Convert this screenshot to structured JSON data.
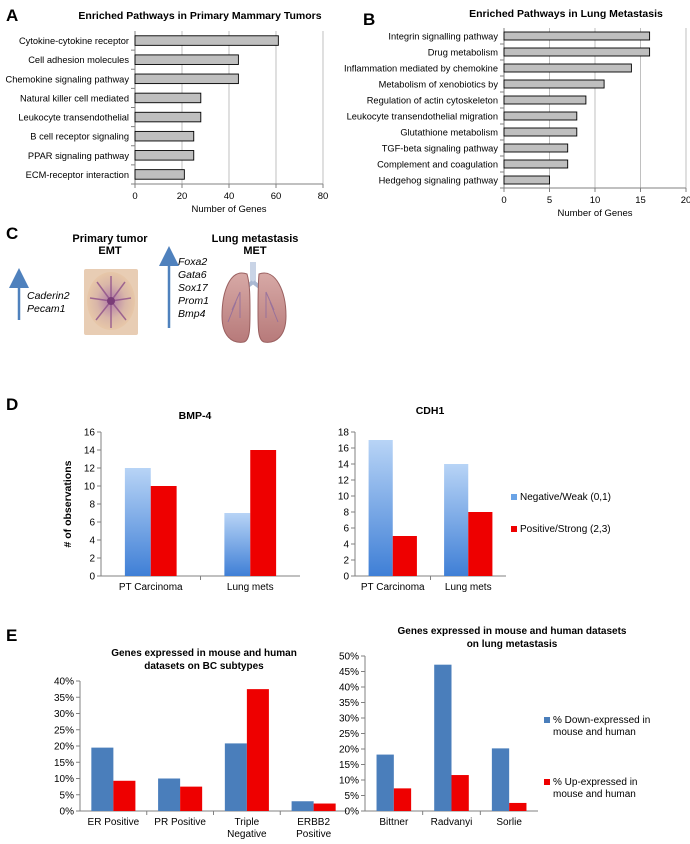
{
  "panels": {
    "A": "A",
    "B": "B",
    "C": "C",
    "D": "D",
    "E": "E"
  },
  "chart_data": [
    {
      "id": "A",
      "type": "bar",
      "orientation": "horizontal",
      "title": "Enriched Pathways in Primary Mammary Tumors",
      "xlabel": "Number of Genes",
      "ylabel": "",
      "xlim": [
        0,
        80
      ],
      "ticks": [
        0,
        20,
        40,
        60,
        80
      ],
      "categories": [
        "Cytokine-cytokine receptor",
        "Cell adhesion molecules",
        "Chemokine signaling pathway",
        "Natural killer cell mediated",
        "Leukocyte transendothelial",
        "B cell receptor signaling",
        "PPAR signaling pathway",
        "ECM-receptor interaction"
      ],
      "values": [
        61,
        44,
        44,
        28,
        28,
        25,
        25,
        21
      ],
      "grid": true,
      "color": "#bfbfbf"
    },
    {
      "id": "B",
      "type": "bar",
      "orientation": "horizontal",
      "title": "Enriched Pathways in Lung Metastasis",
      "xlabel": "Number of Genes",
      "ylabel": "",
      "xlim": [
        0,
        20
      ],
      "ticks": [
        0,
        5,
        10,
        15,
        20
      ],
      "categories": [
        "Integrin signalling pathway",
        "Drug metabolism",
        "Inflammation mediated by chemokine",
        "Metabolism of xenobiotics by",
        "Regulation of actin cytoskeleton",
        "Leukocyte transendothelial migration",
        "Glutathione metabolism",
        "TGF-beta signaling pathway",
        "Complement and coagulation",
        "Hedgehog signaling pathway"
      ],
      "values": [
        16,
        16,
        14,
        11,
        9,
        8,
        8,
        7,
        7,
        5
      ],
      "grid": true,
      "color": "#bfbfbf"
    },
    {
      "id": "D1",
      "type": "bar",
      "title": "BMP-4",
      "xlabel": "",
      "ylabel": "# of observations",
      "ylim": [
        0,
        16
      ],
      "ticks": [
        0,
        2,
        4,
        6,
        8,
        10,
        12,
        14,
        16
      ],
      "categories": [
        "PT Carcinoma",
        "Lung mets"
      ],
      "series": [
        {
          "values": [
            12,
            7
          ],
          "color": "#6aa3e6"
        },
        {
          "values": [
            10,
            14
          ],
          "color": "#ee0000"
        }
      ]
    },
    {
      "id": "D2",
      "type": "bar",
      "title": "CDH1",
      "xlabel": "",
      "ylabel": "",
      "ylim": [
        0,
        18
      ],
      "ticks": [
        0,
        2,
        4,
        6,
        8,
        10,
        12,
        14,
        16,
        18
      ],
      "categories": [
        "PT Carcinoma",
        "Lung mets"
      ],
      "series": [
        {
          "name": "Negative/Weak (0,1)",
          "values": [
            17,
            14
          ],
          "color": "#6aa3e6"
        },
        {
          "name": "Positive/Strong (2,3)",
          "values": [
            5,
            8
          ],
          "color": "#ee0000"
        }
      ],
      "legend": "right"
    },
    {
      "id": "E1",
      "type": "bar",
      "title": "Genes expressed in mouse and human datasets on BC subtypes",
      "xlabel": "",
      "ylabel": "",
      "ylim": [
        0,
        40
      ],
      "ticks": [
        0,
        5,
        10,
        15,
        20,
        25,
        30,
        35,
        40
      ],
      "unit": "%",
      "categories": [
        "ER Positive",
        "PR Positive",
        "Triple Negative",
        "ERBB2 Positive"
      ],
      "series": [
        {
          "values": [
            19.5,
            10,
            20.8,
            3
          ],
          "color": "#4a7ebb"
        },
        {
          "values": [
            9.3,
            7.5,
            37.5,
            2.3
          ],
          "color": "#ee0000"
        }
      ]
    },
    {
      "id": "E2",
      "type": "bar",
      "title": "Genes expressed in mouse and human datasets on lung metastasis",
      "xlabel": "",
      "ylabel": "",
      "ylim": [
        0,
        50
      ],
      "ticks": [
        0,
        5,
        10,
        15,
        20,
        25,
        30,
        35,
        40,
        45,
        50
      ],
      "unit": "%",
      "categories": [
        "Bittner",
        "Radvanyi",
        "Sorlie"
      ],
      "series": [
        {
          "name": "% Down-expressed in mouse and human",
          "values": [
            18.2,
            47.2,
            20.2
          ],
          "color": "#4a7ebb"
        },
        {
          "name": "% Up-expressed in mouse and human",
          "values": [
            7.3,
            11.6,
            2.6
          ],
          "color": "#ee0000"
        }
      ],
      "legend": "right"
    }
  ],
  "panel_c": {
    "primary_label": "Primary tumor",
    "primary_sub": "EMT",
    "lung_label": "Lung metastasis",
    "lung_sub": "MET",
    "primary_genes": [
      "Caderin2",
      "Pecam1"
    ],
    "lung_genes": [
      "Foxa2",
      "Gata6",
      "Sox17",
      "Prom1",
      "Bmp4"
    ],
    "arrow_color": "#4f81bd",
    "icons": [
      "mammary-tumor-photo-icon",
      "lungs-illustration-icon"
    ]
  }
}
